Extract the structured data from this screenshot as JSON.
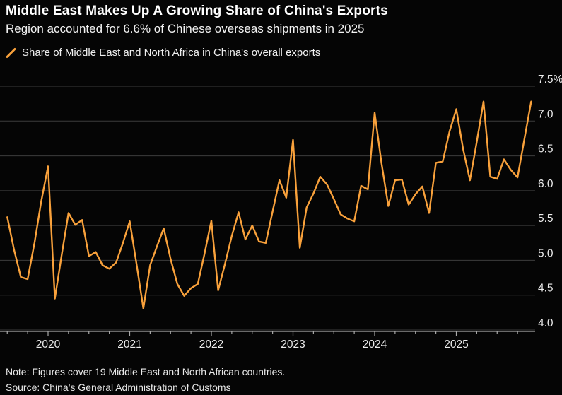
{
  "header": {
    "title": "Middle East Makes Up A Growing Share of China's Exports",
    "subtitle": "Region accounted for 6.6% of Chinese overseas shipments in 2025"
  },
  "legend": {
    "label": "Share of Middle East and North Africa in China's overall exports",
    "marker": "orange-slash"
  },
  "footnotes": {
    "note": "Note: Figures cover 19 Middle East and North African countries.",
    "source": "Source: China's General Administration of Customs"
  },
  "colors": {
    "background": "#050505",
    "line": "#f9a13b",
    "gridline": "#3c3c3c",
    "axis": "#a8a8a8",
    "tick_label": "#ececec",
    "text": "#ffffff"
  },
  "chart_data": {
    "type": "line",
    "title": "Share of Middle East and North Africa in China's overall exports",
    "xlabel": "",
    "ylabel": "%",
    "start_month": "2019-07",
    "frequency": "monthly",
    "values": [
      5.62,
      5.15,
      4.76,
      4.73,
      5.25,
      5.85,
      6.35,
      4.45,
      5.08,
      5.68,
      5.51,
      5.58,
      5.06,
      5.12,
      4.93,
      4.88,
      4.97,
      5.25,
      5.56,
      4.95,
      4.31,
      4.93,
      5.2,
      5.46,
      5.02,
      4.66,
      4.49,
      4.6,
      4.66,
      5.1,
      5.57,
      4.57,
      4.95,
      5.35,
      5.69,
      5.3,
      5.5,
      5.27,
      5.25,
      5.7,
      6.15,
      5.9,
      6.73,
      5.18,
      5.76,
      5.96,
      6.2,
      6.09,
      5.88,
      5.66,
      5.6,
      5.56,
      6.07,
      6.02,
      7.12,
      6.4,
      5.78,
      6.15,
      6.16,
      5.8,
      5.95,
      6.06,
      5.68,
      6.4,
      6.42,
      6.85,
      7.17,
      6.6,
      6.15,
      6.7,
      7.28,
      6.2,
      6.17,
      6.45,
      6.3,
      6.19,
      6.74,
      7.28
    ],
    "ylim": [
      4.0,
      7.5
    ],
    "y_ticks": [
      {
        "value": 7.5,
        "label": "7.5%"
      },
      {
        "value": 7.0,
        "label": "7.0"
      },
      {
        "value": 6.5,
        "label": "6.5"
      },
      {
        "value": 6.0,
        "label": "6.0"
      },
      {
        "value": 5.5,
        "label": "5.5"
      },
      {
        "value": 5.0,
        "label": "5.0"
      },
      {
        "value": 4.5,
        "label": "4.5"
      },
      {
        "value": 4.0,
        "label": "4.0"
      }
    ],
    "x_ticks": [
      {
        "year": 2020,
        "label": "2020"
      },
      {
        "year": 2021,
        "label": "2021"
      },
      {
        "year": 2022,
        "label": "2022"
      },
      {
        "year": 2023,
        "label": "2023"
      },
      {
        "year": 2024,
        "label": "2024"
      },
      {
        "year": 2025,
        "label": "2025"
      }
    ],
    "grid": true,
    "legend_position": "top-left",
    "y_axis_side": "right"
  }
}
